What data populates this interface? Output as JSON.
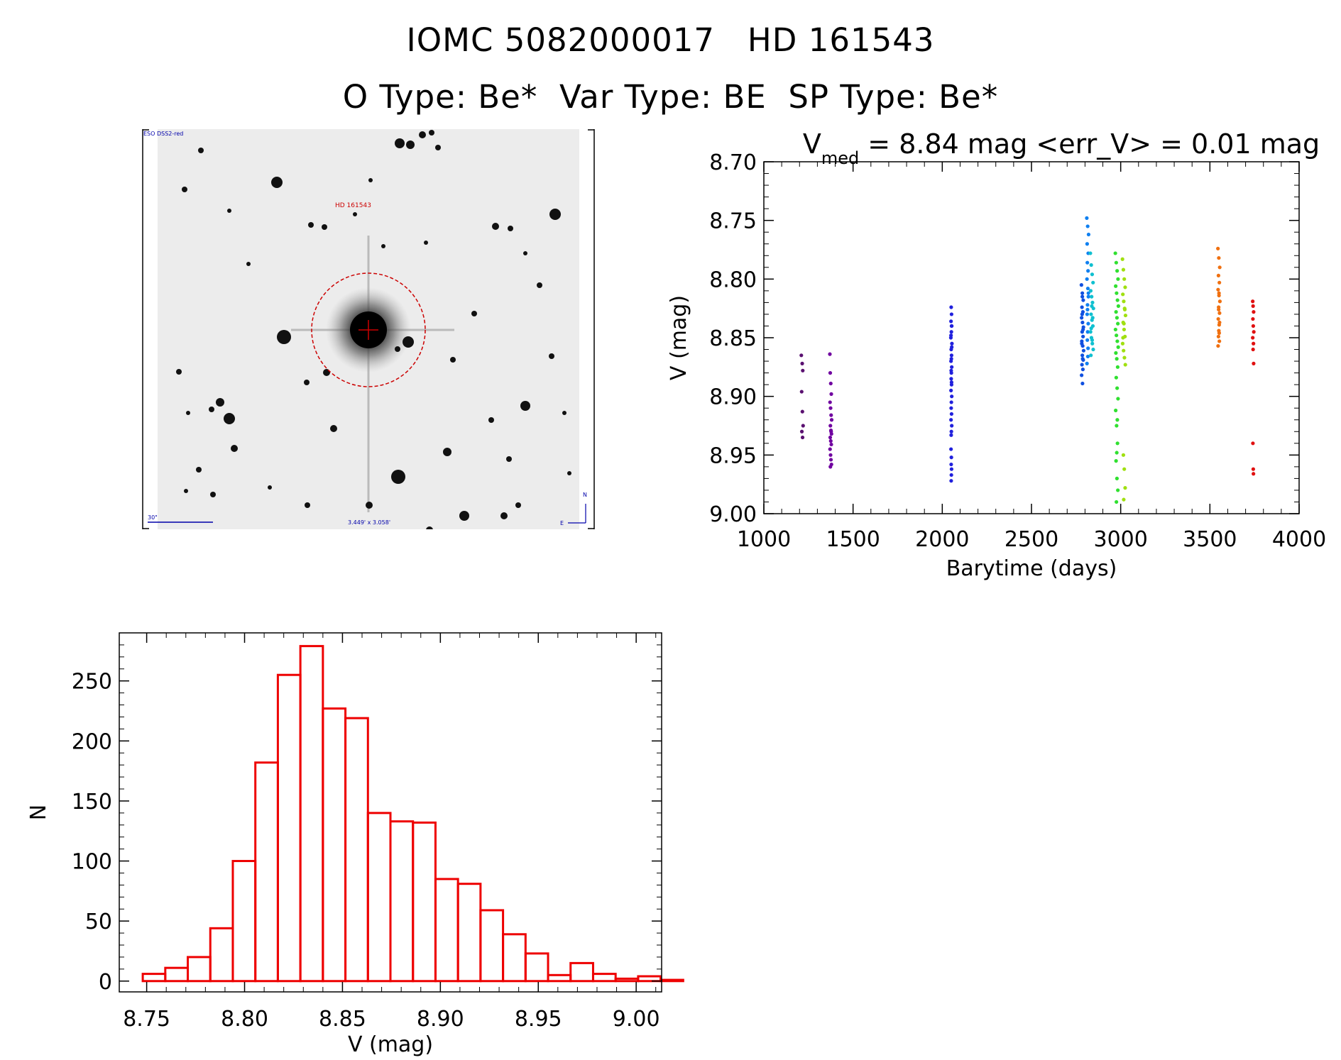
{
  "header": {
    "title": "IOMC 5082000017   HD 161543",
    "subtitle": "O Type: Be*  Var Type: BE  SP Type: Be*"
  },
  "finder_chart": {
    "survey_label": "ESO DSS2-red",
    "target_label": "HD 161543",
    "scale_label": "30\"",
    "fov_label": "3.449' x 3.058'",
    "north_label": "N",
    "east_label": "E",
    "colors": {
      "target": "#cc0000",
      "annotation": "#0000aa"
    }
  },
  "chart_data": [
    {
      "type": "scatter",
      "id": "light-curve",
      "title": {
        "prefix": "V",
        "sub": "med",
        "rest": " = 8.84 mag <err_V> = 0.01 mag"
      },
      "xlabel": "Barytime (days)",
      "ylabel": "V (mag)",
      "xlim": [
        1000,
        4000
      ],
      "ylim": [
        9.0,
        8.7
      ],
      "y_inverted": true,
      "xticks": [
        1000,
        1500,
        2000,
        2500,
        3000,
        3500,
        4000
      ],
      "xtick_labels": [
        "1000",
        "1500",
        "2000",
        "2500",
        "3000",
        "3500",
        "4000"
      ],
      "yticks": [
        8.7,
        8.75,
        8.8,
        8.85,
        8.9,
        8.95,
        9.0
      ],
      "ytick_labels": [
        "8.70",
        "8.75",
        "8.80",
        "8.85",
        "8.90",
        "8.95",
        "9.00"
      ],
      "grid": false,
      "groups": [
        {
          "color": "#5a1070",
          "x": [
            1210,
            1215,
            1218,
            1212,
            1216,
            1220,
            1213,
            1217
          ],
          "y": [
            8.865,
            8.872,
            8.878,
            8.896,
            8.913,
            8.925,
            8.93,
            8.935
          ]
        },
        {
          "color": "#7000a0",
          "x": [
            1370,
            1372,
            1375,
            1378,
            1371,
            1374,
            1377,
            1380,
            1373,
            1376,
            1379,
            1372,
            1375,
            1378,
            1371,
            1374,
            1376,
            1379,
            1373,
            1377
          ],
          "y": [
            8.864,
            8.88,
            8.889,
            8.898,
            8.905,
            8.91,
            8.916,
            8.92,
            8.925,
            8.929,
            8.932,
            8.935,
            8.938,
            8.941,
            8.945,
            8.95,
            8.954,
            8.958,
            8.96,
            8.93
          ]
        },
        {
          "color": "#2020dd",
          "x": [
            2050,
            2052,
            2049,
            2053,
            2051,
            2048,
            2054,
            2050,
            2052,
            2049,
            2053,
            2051,
            2050,
            2052,
            2049,
            2053,
            2051,
            2050,
            2052,
            2049,
            2053,
            2051,
            2050,
            2052,
            2049,
            2053,
            2051,
            2050,
            2052,
            2049,
            2051,
            2050,
            2052,
            2051,
            2050
          ],
          "y": [
            8.824,
            8.83,
            8.836,
            8.84,
            8.845,
            8.85,
            8.855,
            8.86,
            8.865,
            8.87,
            8.875,
            8.88,
            8.885,
            8.89,
            8.895,
            8.9,
            8.905,
            8.91,
            8.915,
            8.92,
            8.925,
            8.93,
            8.933,
            8.84,
            8.848,
            8.858,
            8.868,
            8.878,
            8.888,
            8.945,
            8.952,
            8.958,
            8.962,
            8.967,
            8.972
          ]
        },
        {
          "color": "#1050e0",
          "x": [
            2780,
            2785,
            2790,
            2783,
            2788,
            2781,
            2786,
            2791,
            2784,
            2789,
            2782,
            2787,
            2792,
            2785,
            2790,
            2783,
            2788,
            2781,
            2786,
            2784,
            2789,
            2782,
            2787,
            2785
          ],
          "y": [
            8.805,
            8.812,
            8.818,
            8.824,
            8.828,
            8.833,
            8.837,
            8.841,
            8.845,
            8.849,
            8.853,
            8.857,
            8.861,
            8.865,
            8.869,
            8.873,
            8.877,
            8.882,
            8.889,
            8.83,
            8.843,
            8.855,
            8.868,
            8.815
          ]
        },
        {
          "color": "#1080f0",
          "x": [
            2810,
            2815,
            2820,
            2812,
            2818,
            2813,
            2817,
            2811,
            2816,
            2819,
            2814,
            2812,
            2818,
            2815,
            2813,
            2817,
            2816,
            2811,
            2819,
            2814
          ],
          "y": [
            8.748,
            8.755,
            8.762,
            8.77,
            8.778,
            8.786,
            8.793,
            8.8,
            8.808,
            8.815,
            8.822,
            8.83,
            8.838,
            8.845,
            8.852,
            8.859,
            8.866,
            8.872,
            8.812,
            8.826
          ]
        },
        {
          "color": "#10c0d0",
          "x": [
            2830,
            2835,
            2840,
            2845,
            2832,
            2837,
            2842,
            2847,
            2834,
            2839,
            2844,
            2831,
            2836,
            2841,
            2846,
            2833,
            2838,
            2843,
            2835,
            2840
          ],
          "y": [
            8.778,
            8.788,
            8.796,
            8.803,
            8.81,
            8.815,
            8.82,
            8.825,
            8.83,
            8.835,
            8.84,
            8.845,
            8.85,
            8.855,
            8.86,
            8.865,
            8.823,
            8.833,
            8.842,
            8.852
          ]
        },
        {
          "color": "#30e030",
          "x": [
            2970,
            2975,
            2980,
            2985,
            2972,
            2977,
            2982,
            2987,
            2974,
            2979,
            2984,
            2971,
            2976,
            2981,
            2986,
            2973,
            2978,
            2983,
            2975,
            2980,
            2985,
            2972,
            2977,
            2982,
            2974,
            2979,
            2984,
            2976,
            2981,
            2978
          ],
          "y": [
            8.778,
            8.786,
            8.793,
            8.8,
            8.806,
            8.812,
            8.818,
            8.823,
            8.828,
            8.833,
            8.838,
            8.843,
            8.848,
            8.853,
            8.858,
            8.863,
            8.868,
            8.875,
            8.884,
            8.893,
            8.902,
            8.912,
            8.925,
            8.94,
            8.955,
            8.97,
            8.98,
            8.99,
            8.92,
            8.948
          ]
        },
        {
          "color": "#a0e010",
          "x": [
            3010,
            3015,
            3020,
            3025,
            3012,
            3017,
            3022,
            3027,
            3014,
            3019,
            3024,
            3011,
            3016,
            3021,
            3026,
            3013,
            3018,
            3023,
            3015,
            3020,
            3025,
            3017
          ],
          "y": [
            8.783,
            8.792,
            8.8,
            8.807,
            8.813,
            8.819,
            8.825,
            8.831,
            8.837,
            8.843,
            8.849,
            8.855,
            8.861,
            8.867,
            8.873,
            8.85,
            8.838,
            8.826,
            8.95,
            8.962,
            8.978,
            8.988
          ]
        },
        {
          "color": "#f07010",
          "x": [
            3545,
            3550,
            3555,
            3548,
            3553,
            3546,
            3551,
            3556,
            3549,
            3554,
            3547,
            3552,
            3550,
            3548,
            3553,
            3546,
            3551,
            3549,
            3554,
            3552
          ],
          "y": [
            8.774,
            8.782,
            8.79,
            8.797,
            8.803,
            8.809,
            8.814,
            8.819,
            8.824,
            8.829,
            8.834,
            8.839,
            8.844,
            8.849,
            8.853,
            8.857,
            8.812,
            8.826,
            8.837,
            8.846
          ]
        },
        {
          "color": "#e01010",
          "x": [
            3740,
            3742,
            3745,
            3741,
            3743,
            3746,
            3740,
            3744,
            3742,
            3745,
            3741,
            3743,
            3744
          ],
          "y": [
            8.819,
            8.823,
            8.828,
            8.834,
            8.84,
            8.845,
            8.85,
            8.855,
            8.86,
            8.872,
            8.94,
            8.962,
            8.966
          ]
        }
      ]
    },
    {
      "type": "bar",
      "id": "histogram",
      "xlabel": "V (mag)",
      "ylabel": "N",
      "xlim": [
        8.736,
        9.013
      ],
      "ylim": [
        -9,
        290
      ],
      "bin_width": 0.0115,
      "bin_start": 8.748,
      "values": [
        6,
        11,
        20,
        44,
        100,
        182,
        255,
        279,
        227,
        219,
        140,
        133,
        132,
        85,
        81,
        59,
        39,
        23,
        5,
        15,
        6,
        2,
        4,
        1
      ],
      "xticks": [
        8.75,
        8.8,
        8.85,
        8.9,
        8.95,
        9.0
      ],
      "xtick_labels": [
        "8.75",
        "8.80",
        "8.85",
        "8.90",
        "8.95",
        "9.00"
      ],
      "yticks": [
        0,
        50,
        100,
        150,
        200,
        250
      ],
      "ytick_labels": [
        "0",
        "50",
        "100",
        "150",
        "200",
        "250"
      ],
      "bar_color": "#ee0000",
      "grid": false
    }
  ]
}
